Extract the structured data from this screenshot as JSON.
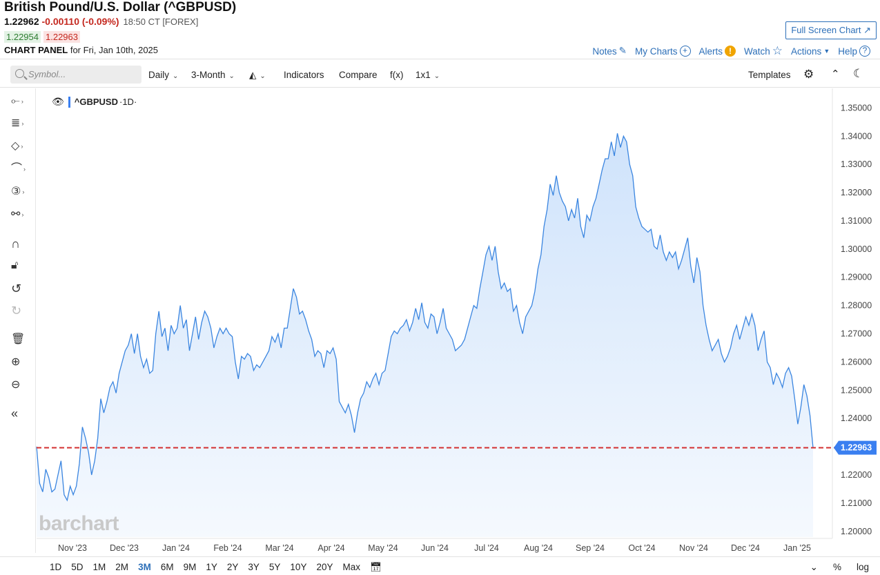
{
  "header": {
    "title": "British Pound/U.S. Dollar (^GBPUSD)",
    "last": "1.22962",
    "change": "-0.00110 (-0.09%)",
    "time": "18:50 CT [FOREX]",
    "bid": "1.22954",
    "ask": "1.22963",
    "panel_label": "CHART PANEL",
    "panel_date": "for Fri, Jan 10th, 2025",
    "fullscreen": "Full Screen Chart ↗"
  },
  "topnav": {
    "notes": "Notes",
    "mycharts": "My Charts",
    "alerts": "Alerts",
    "watch": "Watch",
    "actions": "Actions",
    "help": "Help"
  },
  "toolbar": {
    "search_placeholder": "Symbol...",
    "interval": "Daily",
    "range": "3-Month",
    "indicators": "Indicators",
    "compare": "Compare",
    "fx": "f(x)",
    "layout": "1x1",
    "templates": "Templates"
  },
  "legend": {
    "symbol": "^GBPUSD",
    "interval": "·1D·"
  },
  "logo": "barchart",
  "periods": [
    "1D",
    "5D",
    "1M",
    "2M",
    "3M",
    "6M",
    "9M",
    "1Y",
    "2Y",
    "3Y",
    "5Y",
    "10Y",
    "20Y",
    "Max"
  ],
  "active_period": "3M",
  "controls": {
    "percent": "%",
    "log": "log"
  },
  "colors": {
    "line": "#3a85e0",
    "fill_top": "#cfe3fb",
    "price_line": "#d32f2f",
    "price_badge": "#3a7ff0"
  },
  "chart_data": {
    "type": "area",
    "series": [
      {
        "name": "^GBPUSD",
        "values": [
          1.23,
          1.217,
          1.214,
          1.222,
          1.219,
          1.214,
          1.215,
          1.22,
          1.225,
          1.213,
          1.211,
          1.216,
          1.213,
          1.216,
          1.224,
          1.237,
          1.233,
          1.228,
          1.22,
          1.225,
          1.233,
          1.247,
          1.242,
          1.246,
          1.251,
          1.253,
          1.249,
          1.256,
          1.26,
          1.264,
          1.266,
          1.27,
          1.263,
          1.27,
          1.262,
          1.258,
          1.261,
          1.256,
          1.257,
          1.27,
          1.278,
          1.269,
          1.272,
          1.264,
          1.273,
          1.27,
          1.272,
          1.28,
          1.272,
          1.275,
          1.264,
          1.27,
          1.276,
          1.268,
          1.274,
          1.278,
          1.276,
          1.272,
          1.265,
          1.269,
          1.272,
          1.27,
          1.272,
          1.27,
          1.269,
          1.26,
          1.254,
          1.262,
          1.261,
          1.263,
          1.262,
          1.257,
          1.259,
          1.258,
          1.26,
          1.262,
          1.264,
          1.269,
          1.267,
          1.27,
          1.265,
          1.272,
          1.272,
          1.279,
          1.286,
          1.283,
          1.277,
          1.278,
          1.275,
          1.271,
          1.268,
          1.262,
          1.264,
          1.263,
          1.258,
          1.264,
          1.263,
          1.265,
          1.261,
          1.246,
          1.244,
          1.242,
          1.245,
          1.241,
          1.235,
          1.242,
          1.247,
          1.249,
          1.253,
          1.251,
          1.254,
          1.256,
          1.252,
          1.256,
          1.257,
          1.263,
          1.269,
          1.271,
          1.27,
          1.272,
          1.273,
          1.275,
          1.271,
          1.274,
          1.279,
          1.275,
          1.281,
          1.274,
          1.272,
          1.277,
          1.276,
          1.27,
          1.274,
          1.279,
          1.272,
          1.27,
          1.268,
          1.264,
          1.265,
          1.266,
          1.268,
          1.272,
          1.276,
          1.28,
          1.279,
          1.286,
          1.292,
          1.298,
          1.301,
          1.296,
          1.301,
          1.292,
          1.286,
          1.288,
          1.285,
          1.286,
          1.278,
          1.28,
          1.274,
          1.27,
          1.276,
          1.278,
          1.28,
          1.285,
          1.293,
          1.298,
          1.308,
          1.314,
          1.323,
          1.319,
          1.326,
          1.32,
          1.317,
          1.315,
          1.31,
          1.314,
          1.311,
          1.318,
          1.308,
          1.304,
          1.312,
          1.31,
          1.315,
          1.318,
          1.323,
          1.328,
          1.332,
          1.332,
          1.338,
          1.333,
          1.341,
          1.336,
          1.34,
          1.338,
          1.33,
          1.326,
          1.315,
          1.311,
          1.308,
          1.307,
          1.306,
          1.307,
          1.301,
          1.3,
          1.305,
          1.299,
          1.296,
          1.299,
          1.297,
          1.299,
          1.293,
          1.296,
          1.3,
          1.304,
          1.294,
          1.288,
          1.297,
          1.292,
          1.28,
          1.273,
          1.268,
          1.264,
          1.266,
          1.268,
          1.263,
          1.26,
          1.262,
          1.265,
          1.27,
          1.273,
          1.268,
          1.272,
          1.276,
          1.273,
          1.277,
          1.273,
          1.264,
          1.268,
          1.271,
          1.26,
          1.258,
          1.252,
          1.256,
          1.254,
          1.251,
          1.256,
          1.258,
          1.255,
          1.247,
          1.238,
          1.244,
          1.252,
          1.248,
          1.241,
          1.2296
        ]
      }
    ],
    "x_tick_labels": [
      "Nov '23",
      "Dec '23",
      "Jan '24",
      "Feb '24",
      "Mar '24",
      "Apr '24",
      "May '24",
      "Jun '24",
      "Jul '24",
      "Aug '24",
      "Sep '24",
      "Oct '24",
      "Nov '24",
      "Dec '24",
      "Jan '25"
    ],
    "y_tick_labels": [
      "1.35000",
      "1.34000",
      "1.33000",
      "1.32000",
      "1.31000",
      "1.30000",
      "1.29000",
      "1.28000",
      "1.27000",
      "1.26000",
      "1.25000",
      "1.24000",
      "1.23000",
      "1.22000",
      "1.21000",
      "1.20000"
    ],
    "y_ticks": [
      1.35,
      1.34,
      1.33,
      1.32,
      1.31,
      1.3,
      1.29,
      1.28,
      1.27,
      1.26,
      1.25,
      1.24,
      1.23,
      1.22,
      1.21,
      1.2
    ],
    "ylim": [
      1.198,
      1.354
    ],
    "last_price": 1.22963,
    "last_price_label": "1.22963"
  }
}
